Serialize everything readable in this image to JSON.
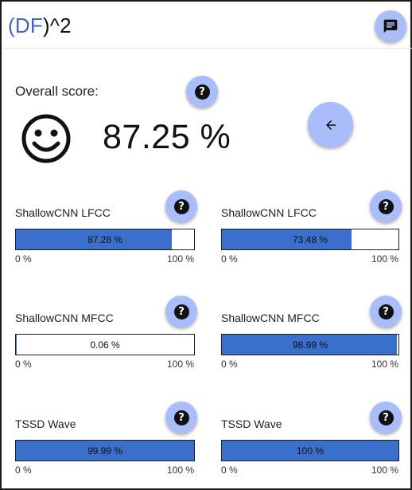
{
  "header": {
    "title_open": "(",
    "title_df": "DF",
    "title_close": ")^2",
    "chat_icon": "chat-icon"
  },
  "overall": {
    "label": "Overall score:",
    "value": "87.25 %",
    "mood_icon": "smiley-face-icon",
    "back_icon": "arrow-left-icon"
  },
  "colors": {
    "accent": "#a9bdfb",
    "bar_fill": "#3a6fcb",
    "title_blue": "#3f66c6"
  },
  "metrics": [
    {
      "label": "ShallowCNN LFCC",
      "value_text": "87.28 %",
      "fraction": 0.8728,
      "min_label": "0 %",
      "max_label": "100 %"
    },
    {
      "label": "ShallowCNN LFCC",
      "value_text": "73.48 %",
      "fraction": 0.7348,
      "min_label": "0 %",
      "max_label": "100 %"
    },
    {
      "label": "ShallowCNN MFCC",
      "value_text": "0.06 %",
      "fraction": 0.0006,
      "min_label": "0 %",
      "max_label": "100 %"
    },
    {
      "label": "ShallowCNN MFCC",
      "value_text": "98.99 %",
      "fraction": 0.9899,
      "min_label": "0 %",
      "max_label": "100 %"
    },
    {
      "label": "TSSD Wave",
      "value_text": "99.99 %",
      "fraction": 0.9999,
      "min_label": "0 %",
      "max_label": "100 %"
    },
    {
      "label": "TSSD Wave",
      "value_text": "100 %",
      "fraction": 1.0,
      "min_label": "0 %",
      "max_label": "100 %"
    }
  ]
}
